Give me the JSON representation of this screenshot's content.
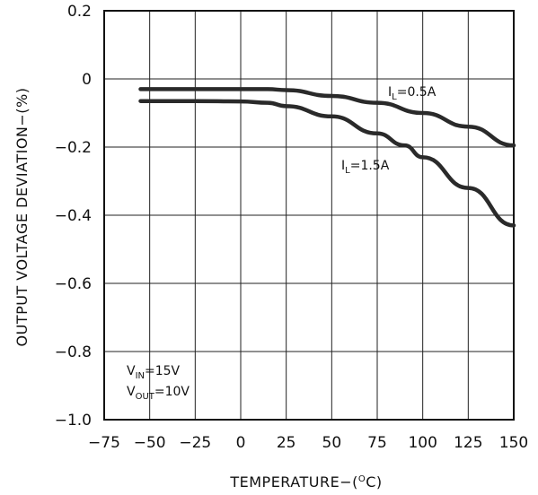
{
  "chart_data": {
    "type": "line",
    "xlabel": "TEMPERATURE−(°C)",
    "xlabel_main": "TEMPERATURE−(",
    "xlabel_unit_degree": "O",
    "xlabel_unit": "C)",
    "ylabel": "OUTPUT VOLTAGE DEVIATION−(%)",
    "xlim": [
      -75,
      150
    ],
    "ylim": [
      -1.0,
      0.2
    ],
    "x_ticks": [
      -75,
      -50,
      -25,
      0,
      25,
      50,
      75,
      100,
      125,
      150
    ],
    "x_tick_labels": [
      "−75",
      "−50",
      "−25",
      "0",
      "25",
      "50",
      "75",
      "100",
      "125",
      "150"
    ],
    "y_ticks": [
      0.2,
      0,
      -0.2,
      -0.4,
      -0.6,
      -0.8,
      -1.0
    ],
    "y_tick_labels": [
      "0.2",
      "0",
      "−0.2",
      "−0.4",
      "−0.6",
      "−0.8",
      "−1.0"
    ],
    "grid": true,
    "series": [
      {
        "name": "IL=0.5A",
        "label_main": "I",
        "label_sub": "L",
        "label_rest": "=0.5A",
        "x": [
          -55,
          -25,
          0,
          15,
          25,
          50,
          75,
          100,
          125,
          150
        ],
        "y": [
          -0.03,
          -0.03,
          -0.03,
          -0.03,
          -0.033,
          -0.05,
          -0.07,
          -0.1,
          -0.14,
          -0.195
        ]
      },
      {
        "name": "IL=1.5A",
        "label_main": "I",
        "label_sub": "L",
        "label_rest": "=1.5A",
        "x": [
          -55,
          -25,
          0,
          15,
          25,
          50,
          75,
          90,
          100,
          125,
          150
        ],
        "y": [
          -0.065,
          -0.065,
          -0.066,
          -0.07,
          -0.08,
          -0.11,
          -0.16,
          -0.195,
          -0.23,
          -0.32,
          -0.43
        ]
      }
    ],
    "conditions": [
      {
        "main": "V",
        "sub": "IN",
        "rest": "=15V"
      },
      {
        "main": "V",
        "sub": "OUT",
        "rest": "=10V"
      }
    ]
  }
}
